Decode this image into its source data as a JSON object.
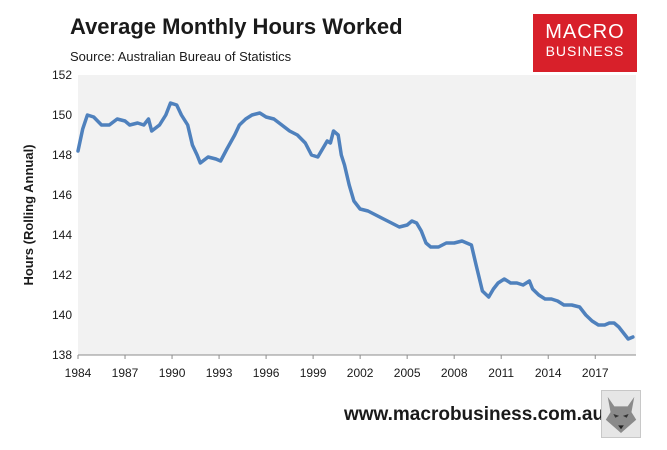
{
  "header": {
    "title": "Average Monthly Hours Worked",
    "subtitle": "Source: Australian Bureau of Statistics"
  },
  "logo": {
    "line1": "MACRO",
    "line2": "BUSINESS"
  },
  "footer": {
    "website": "www.macrobusiness.com.au",
    "mascot_icon": "wolf-icon"
  },
  "colors": {
    "line": "#4f81bd",
    "plot_bg": "#f2f2f2",
    "brand": "#d8202a"
  },
  "chart_data": {
    "type": "line",
    "title": "Average Monthly Hours Worked",
    "subtitle": "Source: Australian Bureau of Statistics",
    "ylabel": "Hours (Rolling Annual)",
    "xlabel": "",
    "xlim": [
      1984,
      2019.6
    ],
    "ylim": [
      138,
      152
    ],
    "x_ticks": [
      "1984",
      "1987",
      "1990",
      "1993",
      "1996",
      "1999",
      "2002",
      "2005",
      "2008",
      "2011",
      "2014",
      "2017"
    ],
    "y_ticks": [
      "138",
      "140",
      "142",
      "144",
      "146",
      "148",
      "150",
      "152"
    ],
    "grid": false,
    "legend": "none",
    "series": [
      {
        "values": [
          [
            1984.0,
            148.2
          ],
          [
            1984.3,
            149.3
          ],
          [
            1984.6,
            150.0
          ],
          [
            1985.0,
            149.9
          ],
          [
            1985.5,
            149.5
          ],
          [
            1986.0,
            149.5
          ],
          [
            1986.5,
            149.8
          ],
          [
            1987.0,
            149.7
          ],
          [
            1987.3,
            149.5
          ],
          [
            1987.8,
            149.6
          ],
          [
            1988.2,
            149.5
          ],
          [
            1988.5,
            149.8
          ],
          [
            1988.7,
            149.2
          ],
          [
            1989.2,
            149.5
          ],
          [
            1989.6,
            150.0
          ],
          [
            1989.9,
            150.6
          ],
          [
            1990.3,
            150.5
          ],
          [
            1990.6,
            150.0
          ],
          [
            1991.0,
            149.5
          ],
          [
            1991.3,
            148.5
          ],
          [
            1991.6,
            148.0
          ],
          [
            1991.8,
            147.6
          ],
          [
            1992.3,
            147.9
          ],
          [
            1992.8,
            147.8
          ],
          [
            1993.1,
            147.7
          ],
          [
            1993.5,
            148.3
          ],
          [
            1994.0,
            149.0
          ],
          [
            1994.3,
            149.5
          ],
          [
            1994.7,
            149.8
          ],
          [
            1995.1,
            150.0
          ],
          [
            1995.6,
            150.1
          ],
          [
            1996.0,
            149.9
          ],
          [
            1996.5,
            149.8
          ],
          [
            1997.0,
            149.5
          ],
          [
            1997.5,
            149.2
          ],
          [
            1998.0,
            149.0
          ],
          [
            1998.5,
            148.6
          ],
          [
            1998.9,
            148.0
          ],
          [
            1999.3,
            147.9
          ],
          [
            1999.6,
            148.3
          ],
          [
            1999.9,
            148.7
          ],
          [
            2000.1,
            148.6
          ],
          [
            2000.3,
            149.2
          ],
          [
            2000.6,
            149.0
          ],
          [
            2000.8,
            148.0
          ],
          [
            2001.0,
            147.5
          ],
          [
            2001.3,
            146.5
          ],
          [
            2001.6,
            145.7
          ],
          [
            2002.0,
            145.3
          ],
          [
            2002.5,
            145.2
          ],
          [
            2003.0,
            145.0
          ],
          [
            2003.5,
            144.8
          ],
          [
            2004.0,
            144.6
          ],
          [
            2004.5,
            144.4
          ],
          [
            2005.0,
            144.5
          ],
          [
            2005.3,
            144.7
          ],
          [
            2005.6,
            144.6
          ],
          [
            2005.9,
            144.2
          ],
          [
            2006.2,
            143.6
          ],
          [
            2006.5,
            143.4
          ],
          [
            2007.0,
            143.4
          ],
          [
            2007.5,
            143.6
          ],
          [
            2008.0,
            143.6
          ],
          [
            2008.5,
            143.7
          ],
          [
            2008.8,
            143.6
          ],
          [
            2009.1,
            143.5
          ],
          [
            2009.4,
            142.5
          ],
          [
            2009.8,
            141.2
          ],
          [
            2010.2,
            140.9
          ],
          [
            2010.5,
            141.3
          ],
          [
            2010.8,
            141.6
          ],
          [
            2011.2,
            141.8
          ],
          [
            2011.6,
            141.6
          ],
          [
            2012.0,
            141.6
          ],
          [
            2012.4,
            141.5
          ],
          [
            2012.8,
            141.7
          ],
          [
            2013.0,
            141.3
          ],
          [
            2013.4,
            141.0
          ],
          [
            2013.8,
            140.8
          ],
          [
            2014.2,
            140.8
          ],
          [
            2014.6,
            140.7
          ],
          [
            2015.0,
            140.5
          ],
          [
            2015.5,
            140.5
          ],
          [
            2016.0,
            140.4
          ],
          [
            2016.4,
            140.0
          ],
          [
            2016.8,
            139.7
          ],
          [
            2017.2,
            139.5
          ],
          [
            2017.6,
            139.5
          ],
          [
            2017.9,
            139.6
          ],
          [
            2018.2,
            139.6
          ],
          [
            2018.5,
            139.4
          ],
          [
            2018.8,
            139.1
          ],
          [
            2019.1,
            138.8
          ],
          [
            2019.4,
            138.9
          ]
        ]
      }
    ]
  }
}
